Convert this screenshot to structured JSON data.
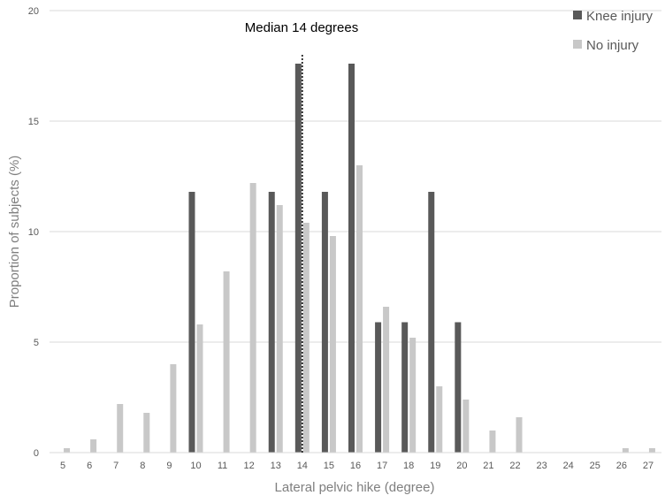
{
  "chart_data": {
    "type": "bar",
    "title": "",
    "xlabel": "Lateral pelvic hike (degree)",
    "ylabel": "Proportion of subjects (%)",
    "ylim": [
      0,
      20
    ],
    "yticks": [
      0,
      5,
      10,
      15,
      20
    ],
    "grid": "horizontal",
    "legend_position": "top-right",
    "categories": [
      "5",
      "6",
      "7",
      "8",
      "9",
      "10",
      "11",
      "12",
      "13",
      "14",
      "15",
      "16",
      "17",
      "18",
      "19",
      "20",
      "21",
      "22",
      "23",
      "24",
      "25",
      "26",
      "27"
    ],
    "series": [
      {
        "name": "Knee injury",
        "color": "#595959",
        "values": [
          0,
          0,
          0,
          0,
          0,
          11.8,
          0,
          0,
          11.8,
          17.6,
          11.8,
          17.6,
          5.9,
          5.9,
          11.8,
          5.9,
          0,
          0,
          0,
          0,
          0,
          0,
          0
        ]
      },
      {
        "name": "No injury",
        "color": "#c8c8c8",
        "values": [
          0.2,
          0.6,
          2.2,
          1.8,
          4.0,
          5.8,
          8.2,
          12.2,
          11.2,
          10.4,
          9.8,
          13.0,
          6.6,
          5.2,
          3.0,
          2.4,
          1.0,
          1.6,
          0,
          0,
          0,
          0.2,
          0.2
        ]
      }
    ],
    "annotations": [
      {
        "text": "Median 14 degrees",
        "x": "14",
        "style": "dotted vertical line"
      }
    ]
  }
}
